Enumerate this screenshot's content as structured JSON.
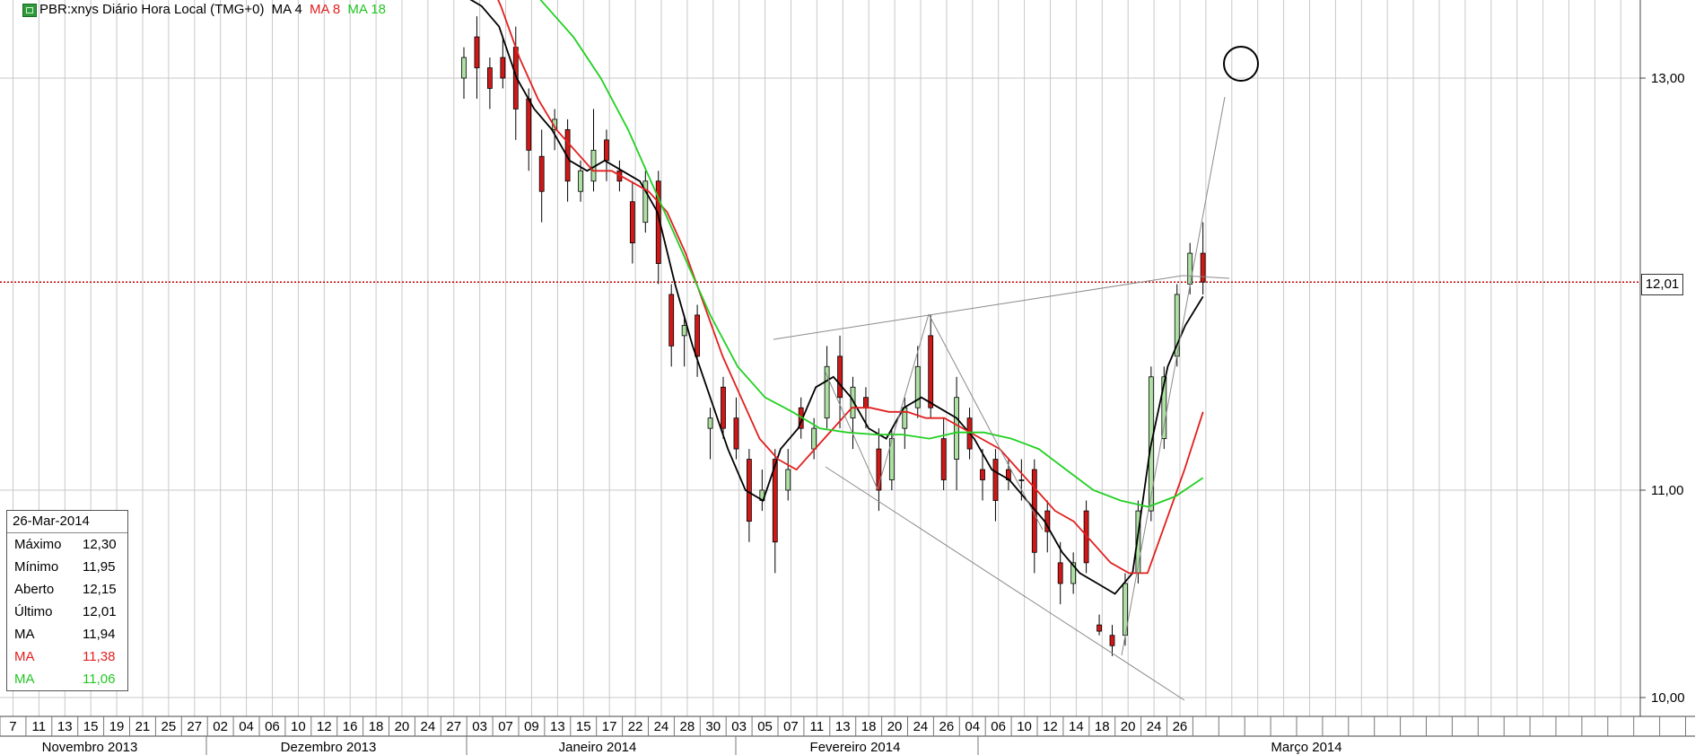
{
  "header": {
    "title": "PBR:xnys Diário Hora Local (TMG+0)",
    "ma4_label": "MA 4",
    "ma8_label": "MA 8",
    "ma18_label": "MA 18"
  },
  "colors": {
    "up_candle": "#aee0a4",
    "down_candle": "#d01818",
    "ma4": "#000000",
    "ma8": "#e11f1f",
    "ma18": "#22d022",
    "last_price_line": "#c00000",
    "grid": "#c8c8c8"
  },
  "info_panel": {
    "date": "26-Mar-2014",
    "rows": [
      {
        "label": "Máximo",
        "value": "12,30"
      },
      {
        "label": "Mínimo",
        "value": "11,95"
      },
      {
        "label": "Aberto",
        "value": "12,15"
      },
      {
        "label": "Último",
        "value": "12,01"
      },
      {
        "label": "MA",
        "value": "11,94"
      },
      {
        "label": "MA",
        "value": "11,38"
      },
      {
        "label": "MA",
        "value": "11,06"
      }
    ]
  },
  "last_price_label": "12,01",
  "chart_data": {
    "type": "candlestick",
    "y_axis": {
      "ticks": [
        "13,00",
        "11,00",
        "10,00"
      ],
      "last": "12,01"
    },
    "x_axis": {
      "day_labels": [
        "7",
        "11",
        "13",
        "15",
        "19",
        "21",
        "25",
        "27",
        "02",
        "04",
        "06",
        "10",
        "12",
        "16",
        "18",
        "20",
        "24",
        "27",
        "03",
        "07",
        "09",
        "13",
        "15",
        "17",
        "22",
        "24",
        "28",
        "30",
        "03",
        "05",
        "07",
        "11",
        "13",
        "18",
        "20",
        "24",
        "26",
        "04",
        "06",
        "10",
        "12",
        "14",
        "18",
        "20",
        "24",
        "26"
      ],
      "months": [
        "Novembro 2013",
        "Dezembro 2013",
        "Janeiro 2014",
        "Fevereiro 2014",
        "Março 2014"
      ]
    },
    "series": [
      {
        "name": "MA 4",
        "values": [
          13.4,
          13.35,
          13.25,
          13.0,
          12.85,
          12.75,
          12.6,
          12.55,
          12.6,
          12.55,
          12.5,
          12.35,
          12.0,
          11.7,
          11.45,
          11.2,
          11.0,
          10.95,
          11.2,
          11.3,
          11.5,
          11.55,
          11.45,
          11.3,
          11.25,
          11.4,
          11.45,
          11.4,
          11.35,
          11.25,
          11.1,
          11.05,
          10.95,
          10.85,
          10.7,
          10.6,
          10.55,
          10.5,
          10.6,
          11.2,
          11.6,
          11.8,
          11.94
        ]
      },
      {
        "name": "MA 8",
        "values": [
          13.7,
          13.55,
          13.35,
          13.1,
          12.9,
          12.75,
          12.65,
          12.55,
          12.55,
          12.5,
          12.45,
          12.35,
          12.15,
          11.9,
          11.65,
          11.45,
          11.25,
          11.15,
          11.1,
          11.2,
          11.3,
          11.4,
          11.4,
          11.38,
          11.38,
          11.35,
          11.35,
          11.3,
          11.25,
          11.2,
          11.1,
          11.0,
          10.9,
          10.85,
          10.75,
          10.65,
          10.6,
          10.6,
          10.85,
          11.1,
          11.38
        ]
      },
      {
        "name": "MA 18",
        "values": [
          13.8,
          13.65,
          13.5,
          13.35,
          13.2,
          13.0,
          12.75,
          12.45,
          12.15,
          11.85,
          11.6,
          11.45,
          11.38,
          11.3,
          11.28,
          11.27,
          11.27,
          11.25,
          11.28,
          11.28,
          11.25,
          11.2,
          11.1,
          11.0,
          10.95,
          10.92,
          10.97,
          11.06
        ]
      }
    ],
    "candles": [
      {
        "date": "27",
        "o": 13.0,
        "h": 13.15,
        "l": 12.9,
        "c": 13.1
      },
      {
        "date": "03",
        "o": 13.2,
        "h": 13.3,
        "l": 12.9,
        "c": 13.05
      },
      {
        "date": "03",
        "o": 13.05,
        "h": 13.1,
        "l": 12.85,
        "c": 12.95
      },
      {
        "date": "06",
        "o": 13.1,
        "h": 13.2,
        "l": 12.95,
        "c": 13.0
      },
      {
        "date": "07",
        "o": 13.15,
        "h": 13.25,
        "l": 12.7,
        "c": 12.85
      },
      {
        "date": "08",
        "o": 12.9,
        "h": 12.95,
        "l": 12.55,
        "c": 12.65
      },
      {
        "date": "09",
        "o": 12.62,
        "h": 12.75,
        "l": 12.3,
        "c": 12.45
      },
      {
        "date": "10",
        "o": 12.75,
        "h": 12.85,
        "l": 12.65,
        "c": 12.8
      },
      {
        "date": "13",
        "o": 12.75,
        "h": 12.8,
        "l": 12.4,
        "c": 12.5
      },
      {
        "date": "14",
        "o": 12.45,
        "h": 12.6,
        "l": 12.4,
        "c": 12.55
      },
      {
        "date": "15",
        "o": 12.5,
        "h": 12.85,
        "l": 12.45,
        "c": 12.65
      },
      {
        "date": "16",
        "o": 12.7,
        "h": 12.75,
        "l": 12.5,
        "c": 12.6
      },
      {
        "date": "17",
        "o": 12.55,
        "h": 12.6,
        "l": 12.45,
        "c": 12.5
      },
      {
        "date": "21",
        "o": 12.4,
        "h": 12.5,
        "l": 12.1,
        "c": 12.2
      },
      {
        "date": "22",
        "o": 12.3,
        "h": 12.55,
        "l": 12.25,
        "c": 12.5
      },
      {
        "date": "23",
        "o": 12.5,
        "h": 12.55,
        "l": 12.0,
        "c": 12.1
      },
      {
        "date": "24",
        "o": 11.95,
        "h": 12.0,
        "l": 11.6,
        "c": 11.7
      },
      {
        "date": "27",
        "o": 11.75,
        "h": 11.85,
        "l": 11.6,
        "c": 11.8
      },
      {
        "date": "28",
        "o": 11.85,
        "h": 11.9,
        "l": 11.55,
        "c": 11.65
      },
      {
        "date": "29",
        "o": 11.3,
        "h": 11.4,
        "l": 11.15,
        "c": 11.35
      },
      {
        "date": "30",
        "o": 11.5,
        "h": 11.55,
        "l": 11.25,
        "c": 11.3
      },
      {
        "date": "31",
        "o": 11.35,
        "h": 11.45,
        "l": 11.15,
        "c": 11.2
      },
      {
        "date": "03",
        "o": 11.15,
        "h": 11.2,
        "l": 10.75,
        "c": 10.85
      },
      {
        "date": "04",
        "o": 10.95,
        "h": 11.1,
        "l": 10.9,
        "c": 11.0
      },
      {
        "date": "05",
        "o": 11.15,
        "h": 11.2,
        "l": 10.6,
        "c": 10.75
      },
      {
        "date": "06",
        "o": 11.0,
        "h": 11.2,
        "l": 10.95,
        "c": 11.1
      },
      {
        "date": "07",
        "o": 11.4,
        "h": 11.45,
        "l": 11.25,
        "c": 11.3
      },
      {
        "date": "10",
        "o": 11.2,
        "h": 11.35,
        "l": 11.15,
        "c": 11.3
      },
      {
        "date": "11",
        "o": 11.35,
        "h": 11.7,
        "l": 11.3,
        "c": 11.6
      },
      {
        "date": "12",
        "o": 11.65,
        "h": 11.75,
        "l": 11.3,
        "c": 11.45
      },
      {
        "date": "13",
        "o": 11.35,
        "h": 11.55,
        "l": 11.2,
        "c": 11.5
      },
      {
        "date": "14",
        "o": 11.45,
        "h": 11.5,
        "l": 11.3,
        "c": 11.4
      },
      {
        "date": "18",
        "o": 11.2,
        "h": 11.3,
        "l": 10.9,
        "c": 11.0
      },
      {
        "date": "19",
        "o": 11.05,
        "h": 11.3,
        "l": 11.0,
        "c": 11.25
      },
      {
        "date": "20",
        "o": 11.3,
        "h": 11.45,
        "l": 11.2,
        "c": 11.4
      },
      {
        "date": "21",
        "o": 11.4,
        "h": 11.7,
        "l": 11.35,
        "c": 11.6
      },
      {
        "date": "24",
        "o": 11.75,
        "h": 11.85,
        "l": 11.35,
        "c": 11.4
      },
      {
        "date": "25",
        "o": 11.25,
        "h": 11.35,
        "l": 11.0,
        "c": 11.05
      },
      {
        "date": "26",
        "o": 11.15,
        "h": 11.55,
        "l": 11.0,
        "c": 11.45
      },
      {
        "date": "27",
        "o": 11.35,
        "h": 11.4,
        "l": 11.15,
        "c": 11.2
      },
      {
        "date": "28",
        "o": 11.1,
        "h": 11.2,
        "l": 10.95,
        "c": 11.05
      },
      {
        "date": "04",
        "o": 11.15,
        "h": 11.2,
        "l": 10.85,
        "c": 10.95
      },
      {
        "date": "05",
        "o": 11.1,
        "h": 11.15,
        "l": 11.0,
        "c": 11.05
      },
      {
        "date": "06",
        "o": 11.05,
        "h": 11.15,
        "l": 10.95,
        "c": 11.05
      },
      {
        "date": "07",
        "o": 11.1,
        "h": 11.15,
        "l": 10.6,
        "c": 10.7
      },
      {
        "date": "10",
        "o": 10.9,
        "h": 10.95,
        "l": 10.7,
        "c": 10.8
      },
      {
        "date": "11",
        "o": 10.65,
        "h": 10.75,
        "l": 10.45,
        "c": 10.55
      },
      {
        "date": "12",
        "o": 10.55,
        "h": 10.7,
        "l": 10.5,
        "c": 10.65
      },
      {
        "date": "13",
        "o": 10.9,
        "h": 10.95,
        "l": 10.6,
        "c": 10.65
      },
      {
        "date": "14",
        "o": 10.35,
        "h": 10.4,
        "l": 10.3,
        "c": 10.32
      },
      {
        "date": "17",
        "o": 10.3,
        "h": 10.35,
        "l": 10.2,
        "c": 10.25
      },
      {
        "date": "18",
        "o": 10.3,
        "h": 10.6,
        "l": 10.25,
        "c": 10.55
      },
      {
        "date": "19",
        "o": 10.6,
        "h": 10.95,
        "l": 10.55,
        "c": 10.9
      },
      {
        "date": "20",
        "o": 10.9,
        "h": 11.6,
        "l": 10.85,
        "c": 11.55
      },
      {
        "date": "21",
        "o": 11.25,
        "h": 11.6,
        "l": 11.2,
        "c": 11.55
      },
      {
        "date": "24",
        "o": 11.65,
        "h": 12.0,
        "l": 11.6,
        "c": 11.95
      },
      {
        "date": "25",
        "o": 12.0,
        "h": 12.2,
        "l": 11.95,
        "c": 12.15
      },
      {
        "date": "26",
        "o": 12.15,
        "h": 12.3,
        "l": 11.95,
        "c": 12.01
      }
    ]
  }
}
